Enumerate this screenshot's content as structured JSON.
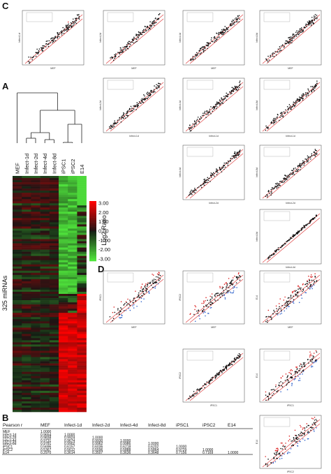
{
  "panels": {
    "a": "A",
    "b": "B",
    "c": "C",
    "d": "D"
  },
  "heatmap": {
    "columns": [
      "MEF",
      "Infect-1d",
      "Infect-2d",
      "Infect-4d",
      "Infect-8d",
      "iPSC1",
      "iPSC2",
      "E14"
    ],
    "row_label": "325 miRNAs",
    "legend_title": "Log2 Ratio",
    "legend_ticks": [
      "3.00",
      "2.00",
      "1.00",
      "0.00",
      "-1.00",
      "-2.00",
      "-3.00"
    ]
  },
  "scatter_c": [
    {
      "x": "MEF",
      "y": "Infect-1d"
    },
    {
      "x": "MEF",
      "y": "Infect-2d"
    },
    {
      "x": "MEF",
      "y": "Infect-4d"
    },
    {
      "x": "MEF",
      "y": "Infect-8d"
    },
    {
      "x": "Infect-1d",
      "y": "Infect-2d"
    },
    {
      "x": "Infect-1d",
      "y": "Infect-4d"
    },
    {
      "x": "Infect-1d",
      "y": "Infect-8d"
    },
    {
      "x": "Infect-2d",
      "y": "Infect-4d"
    },
    {
      "x": "Infect-2d",
      "y": "Infect-8d"
    },
    {
      "x": "Infect-4d",
      "y": "Infect-8d"
    }
  ],
  "scatter_d": [
    {
      "x": "MEF",
      "y": "iPSC1"
    },
    {
      "x": "MEF",
      "y": "iPSC2"
    },
    {
      "x": "MEF",
      "y": "E14"
    },
    {
      "x": "iPSC1",
      "y": "iPSC2"
    },
    {
      "x": "iPSC1",
      "y": "E14"
    },
    {
      "x": "iPSC2",
      "y": "E14"
    }
  ],
  "table": {
    "header": [
      "Pearson r",
      "MEF",
      "Infect-1d",
      "Infect-2d",
      "Infect-4d",
      "Infect-8d",
      "iPSC1",
      "iPSC2",
      "E14"
    ],
    "rows": [
      [
        "MEF",
        "1.0000"
      ],
      [
        "Infect-1d",
        "0.9654",
        "1.0000"
      ],
      [
        "Infect-2d",
        "0.9838",
        "0.9924",
        "1.0000"
      ],
      [
        "Infect-4d",
        "0.9731",
        "0.9674",
        "0.9930",
        "1.0000"
      ],
      [
        "Infect-8d",
        "0.9781",
        "0.9902",
        "0.9962",
        "0.9986",
        "1.0000"
      ],
      [
        "iPSC1",
        "0.5696",
        "0.6157",
        "0.6036",
        "0.6218",
        "0.6202",
        "1.0000"
      ],
      [
        "iPSC2",
        "0.5367",
        "0.5612",
        "0.5596",
        "0.5888",
        "0.5864",
        "0.9729",
        "1.0000"
      ],
      [
        "E14",
        "0.2970",
        "0.3614",
        "0.3507",
        "0.3636",
        "0.3648",
        "0.7156",
        "0.7169",
        "1.0000"
      ]
    ]
  }
}
